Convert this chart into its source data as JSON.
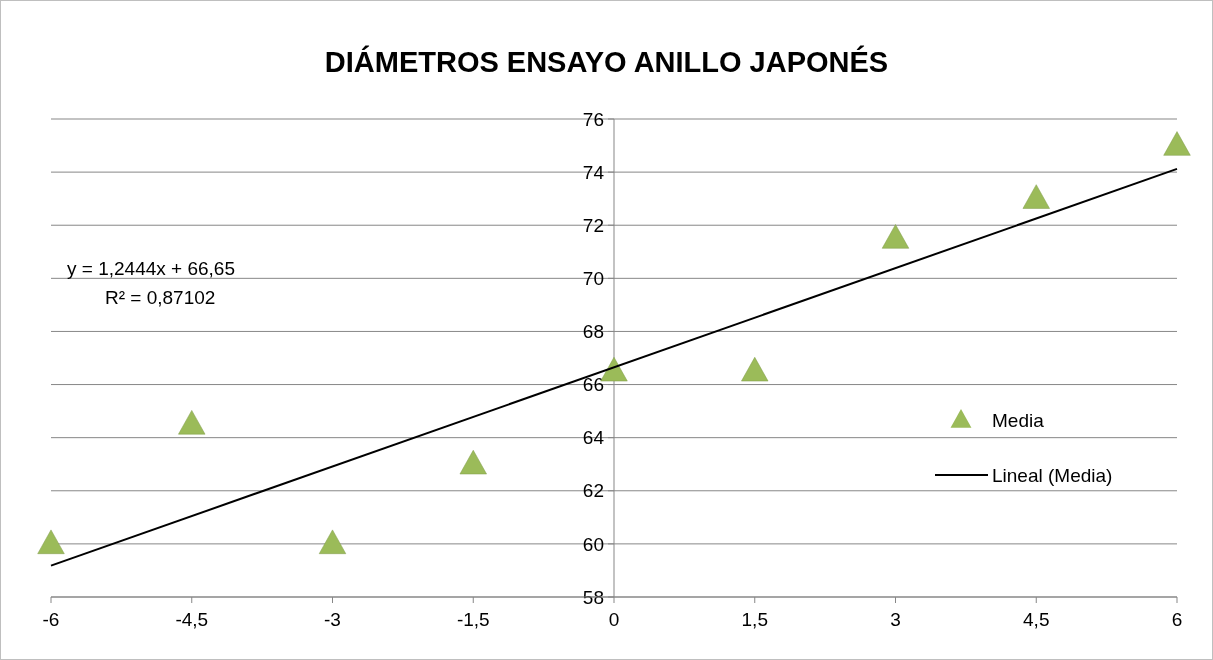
{
  "chart_data": {
    "type": "scatter",
    "title": "DIÁMETROS ENSAYO ANILLO JAPONÉS",
    "xlim": [
      -6,
      6
    ],
    "xticks": [
      -6,
      {
        "value": -4.5,
        "label": "-4,5"
      },
      -3,
      {
        "value": -1.5,
        "label": "-1,5"
      },
      0,
      {
        "value": 1.5,
        "label": "1,5"
      },
      3,
      {
        "value": 4.5,
        "label": "4,5"
      },
      6
    ],
    "ylim": [
      58,
      76
    ],
    "yticks": [
      58,
      60,
      62,
      64,
      66,
      68,
      70,
      72,
      74,
      76
    ],
    "grid": "y",
    "legend": "right",
    "annotations": [
      "y = 1,2444x + 66,65",
      "R² = 0,87102"
    ],
    "series": [
      {
        "name": "Media",
        "marker": "triangle",
        "color": "#9bbb59",
        "x": [
          -6,
          -4.5,
          -3,
          -1.5,
          0,
          1.5,
          3,
          4.5,
          6
        ],
        "values": [
          60,
          64.5,
          60,
          63,
          66.5,
          66.5,
          71.5,
          73,
          75
        ]
      },
      {
        "name": "Lineal (Media)",
        "type": "line",
        "marker": "none",
        "color": "#000000",
        "x": [
          -6,
          6
        ],
        "values": [
          59.18,
          74.12
        ]
      }
    ]
  }
}
